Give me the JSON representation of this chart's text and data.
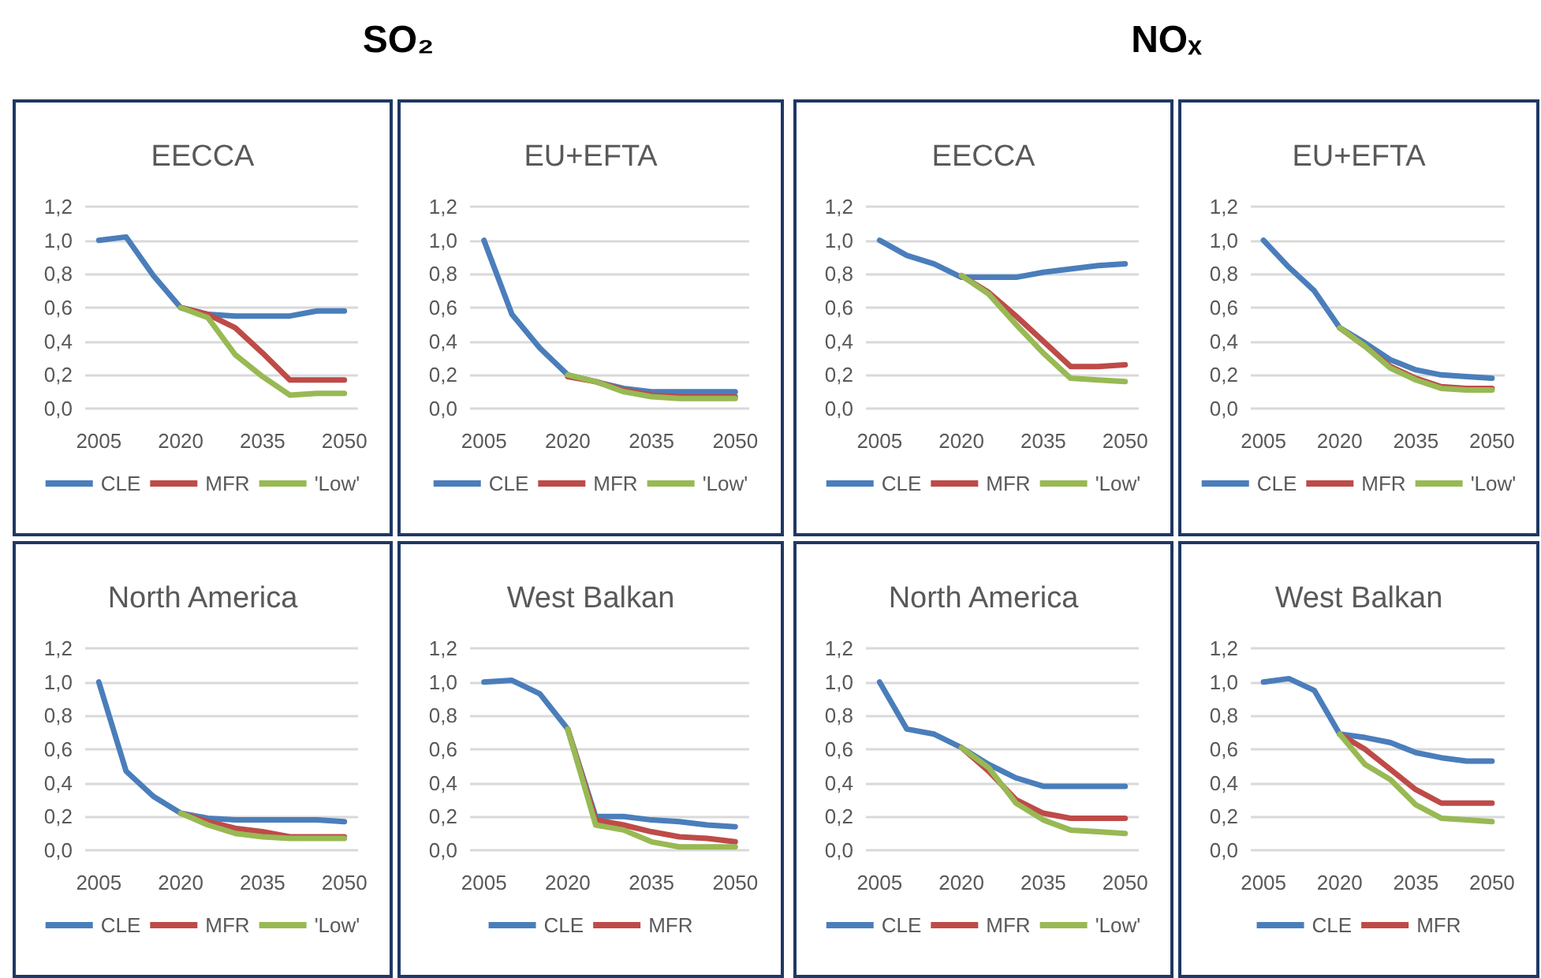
{
  "chart_data": [
    {
      "type": "line",
      "title": "EECCA",
      "annotations": [
        "SO₂"
      ],
      "categories": [
        "2005",
        null,
        null,
        "2020",
        null,
        null,
        "2035",
        null,
        null,
        "2050"
      ],
      "ylim": [
        0,
        1.2
      ],
      "yticks": [
        {
          "value": 0,
          "label": "0,0"
        },
        {
          "value": 0.2,
          "label": "0,2"
        },
        {
          "value": 0.4,
          "label": "0,4"
        },
        {
          "value": 0.6,
          "label": "0,6"
        },
        {
          "value": 0.8,
          "label": "0,8"
        },
        {
          "value": 1.0,
          "label": "1,0"
        },
        {
          "value": 1.2,
          "label": "1,2"
        }
      ],
      "grid": "y",
      "legend": "bottom",
      "marker": "none",
      "line_style": "solid",
      "series": [
        {
          "name": "CLE",
          "color": "#4a7ebb",
          "values": [
            1.0,
            1.02,
            0.79,
            0.6,
            0.56,
            0.55,
            0.55,
            0.55,
            0.58,
            0.58
          ]
        },
        {
          "name": "MFR",
          "color": "#be4b48",
          "values": [
            null,
            null,
            null,
            0.6,
            0.56,
            0.48,
            0.33,
            0.17,
            0.17,
            0.17
          ]
        },
        {
          "name": "'Low'",
          "color": "#98b954",
          "values": [
            null,
            null,
            null,
            0.6,
            0.54,
            0.32,
            0.19,
            0.08,
            0.09,
            0.09
          ]
        }
      ]
    },
    {
      "type": "line",
      "title": "EU+EFTA",
      "categories": [
        "2005",
        null,
        null,
        "2020",
        null,
        null,
        "2035",
        null,
        null,
        "2050"
      ],
      "ylim": [
        0,
        1.2
      ],
      "yticks": [
        {
          "value": 0,
          "label": "0,0"
        },
        {
          "value": 0.2,
          "label": "0,2"
        },
        {
          "value": 0.4,
          "label": "0,4"
        },
        {
          "value": 0.6,
          "label": "0,6"
        },
        {
          "value": 0.8,
          "label": "0,8"
        },
        {
          "value": 1.0,
          "label": "1,0"
        },
        {
          "value": 1.2,
          "label": "1,2"
        }
      ],
      "grid": "y",
      "legend": "bottom",
      "marker": "none",
      "line_style": "solid",
      "series": [
        {
          "name": "CLE",
          "color": "#4a7ebb",
          "values": [
            1.0,
            0.56,
            0.36,
            0.2,
            0.16,
            0.12,
            0.1,
            0.1,
            0.1,
            0.1
          ]
        },
        {
          "name": "MFR",
          "color": "#be4b48",
          "values": [
            null,
            null,
            null,
            0.19,
            0.16,
            0.11,
            0.08,
            0.07,
            0.07,
            0.07
          ]
        },
        {
          "name": "'Low'",
          "color": "#98b954",
          "values": [
            null,
            null,
            null,
            0.2,
            0.16,
            0.1,
            0.07,
            0.06,
            0.06,
            0.06
          ]
        }
      ]
    },
    {
      "type": "line",
      "title": "EECCA",
      "annotations": [
        "NOₓ"
      ],
      "categories": [
        "2005",
        null,
        null,
        "2020",
        null,
        null,
        "2035",
        null,
        null,
        "2050"
      ],
      "ylim": [
        0,
        1.2
      ],
      "yticks": [
        {
          "value": 0,
          "label": "0,0"
        },
        {
          "value": 0.2,
          "label": "0,2"
        },
        {
          "value": 0.4,
          "label": "0,4"
        },
        {
          "value": 0.6,
          "label": "0,6"
        },
        {
          "value": 0.8,
          "label": "0,8"
        },
        {
          "value": 1.0,
          "label": "1,0"
        },
        {
          "value": 1.2,
          "label": "1,2"
        }
      ],
      "grid": "y",
      "legend": "bottom",
      "marker": "none",
      "line_style": "solid",
      "series": [
        {
          "name": "CLE",
          "color": "#4a7ebb",
          "values": [
            1.0,
            0.91,
            0.86,
            0.78,
            0.78,
            0.78,
            0.81,
            0.83,
            0.85,
            0.86
          ]
        },
        {
          "name": "MFR",
          "color": "#be4b48",
          "values": [
            null,
            null,
            null,
            0.79,
            0.69,
            0.55,
            0.4,
            0.25,
            0.25,
            0.26
          ]
        },
        {
          "name": "'Low'",
          "color": "#98b954",
          "values": [
            null,
            null,
            null,
            0.79,
            0.68,
            0.5,
            0.33,
            0.18,
            0.17,
            0.16
          ]
        }
      ]
    },
    {
      "type": "line",
      "title": "EU+EFTA",
      "categories": [
        "2005",
        null,
        null,
        "2020",
        null,
        null,
        "2035",
        null,
        null,
        "2050"
      ],
      "ylim": [
        0,
        1.2
      ],
      "yticks": [
        {
          "value": 0,
          "label": "0,0"
        },
        {
          "value": 0.2,
          "label": "0,2"
        },
        {
          "value": 0.4,
          "label": "0,4"
        },
        {
          "value": 0.6,
          "label": "0,6"
        },
        {
          "value": 0.8,
          "label": "0,8"
        },
        {
          "value": 1.0,
          "label": "1,0"
        },
        {
          "value": 1.2,
          "label": "1,2"
        }
      ],
      "grid": "y",
      "legend": "bottom",
      "marker": "none",
      "line_style": "solid",
      "series": [
        {
          "name": "CLE",
          "color": "#4a7ebb",
          "values": [
            1.0,
            0.84,
            0.7,
            0.48,
            0.39,
            0.29,
            0.23,
            0.2,
            0.19,
            0.18
          ]
        },
        {
          "name": "MFR",
          "color": "#be4b48",
          "values": [
            null,
            null,
            null,
            0.48,
            0.37,
            0.25,
            0.18,
            0.13,
            0.12,
            0.12
          ]
        },
        {
          "name": "'Low'",
          "color": "#98b954",
          "values": [
            null,
            null,
            null,
            0.48,
            0.37,
            0.24,
            0.17,
            0.12,
            0.11,
            0.11
          ]
        }
      ]
    },
    {
      "type": "line",
      "title": "North America",
      "categories": [
        "2005",
        null,
        null,
        "2020",
        null,
        null,
        "2035",
        null,
        null,
        "2050"
      ],
      "ylim": [
        0,
        1.2
      ],
      "yticks": [
        {
          "value": 0,
          "label": "0,0"
        },
        {
          "value": 0.2,
          "label": "0,2"
        },
        {
          "value": 0.4,
          "label": "0,4"
        },
        {
          "value": 0.6,
          "label": "0,6"
        },
        {
          "value": 0.8,
          "label": "0,8"
        },
        {
          "value": 1.0,
          "label": "1,0"
        },
        {
          "value": 1.2,
          "label": "1,2"
        }
      ],
      "grid": "y",
      "legend": "bottom",
      "marker": "none",
      "line_style": "solid",
      "series": [
        {
          "name": "CLE",
          "color": "#4a7ebb",
          "values": [
            1.0,
            0.47,
            0.32,
            0.22,
            0.19,
            0.18,
            0.18,
            0.18,
            0.18,
            0.17
          ]
        },
        {
          "name": "MFR",
          "color": "#be4b48",
          "values": [
            null,
            null,
            null,
            0.22,
            0.17,
            0.13,
            0.11,
            0.08,
            0.08,
            0.08
          ]
        },
        {
          "name": "'Low'",
          "color": "#98b954",
          "values": [
            null,
            null,
            null,
            0.22,
            0.15,
            0.1,
            0.08,
            0.07,
            0.07,
            0.07
          ]
        }
      ]
    },
    {
      "type": "line",
      "title": "West Balkan",
      "categories": [
        "2005",
        null,
        null,
        "2020",
        null,
        null,
        "2035",
        null,
        null,
        "2050"
      ],
      "ylim": [
        0,
        1.2
      ],
      "yticks": [
        {
          "value": 0,
          "label": "0,0"
        },
        {
          "value": 0.2,
          "label": "0,2"
        },
        {
          "value": 0.4,
          "label": "0,4"
        },
        {
          "value": 0.6,
          "label": "0,6"
        },
        {
          "value": 0.8,
          "label": "0,8"
        },
        {
          "value": 1.0,
          "label": "1,0"
        },
        {
          "value": 1.2,
          "label": "1,2"
        }
      ],
      "grid": "y",
      "legend": "bottom",
      "marker": "none",
      "line_style": "solid",
      "series": [
        {
          "name": "CLE",
          "color": "#4a7ebb",
          "values": [
            1.0,
            1.01,
            0.93,
            0.72,
            0.2,
            0.2,
            0.18,
            0.17,
            0.15,
            0.14
          ]
        },
        {
          "name": "MFR",
          "color": "#be4b48",
          "values": [
            null,
            null,
            null,
            0.72,
            0.18,
            0.15,
            0.11,
            0.08,
            0.07,
            0.05
          ]
        },
        {
          "color": "#98b954",
          "values": [
            null,
            null,
            null,
            0.72,
            0.15,
            0.12,
            0.05,
            0.02,
            0.02,
            0.02
          ]
        }
      ]
    },
    {
      "type": "line",
      "title": "North America",
      "categories": [
        "2005",
        null,
        null,
        "2020",
        null,
        null,
        "2035",
        null,
        null,
        "2050"
      ],
      "ylim": [
        0,
        1.2
      ],
      "yticks": [
        {
          "value": 0,
          "label": "0,0"
        },
        {
          "value": 0.2,
          "label": "0,2"
        },
        {
          "value": 0.4,
          "label": "0,4"
        },
        {
          "value": 0.6,
          "label": "0,6"
        },
        {
          "value": 0.8,
          "label": "0,8"
        },
        {
          "value": 1.0,
          "label": "1,0"
        },
        {
          "value": 1.2,
          "label": "1,2"
        }
      ],
      "grid": "y",
      "legend": "bottom",
      "marker": "none",
      "line_style": "solid",
      "series": [
        {
          "name": "CLE",
          "color": "#4a7ebb",
          "values": [
            1.0,
            0.72,
            0.69,
            0.61,
            0.51,
            0.43,
            0.38,
            0.38,
            0.38,
            0.38
          ]
        },
        {
          "name": "MFR",
          "color": "#be4b48",
          "values": [
            null,
            null,
            null,
            0.61,
            0.47,
            0.3,
            0.22,
            0.19,
            0.19,
            0.19
          ]
        },
        {
          "name": "'Low'",
          "color": "#98b954",
          "values": [
            null,
            null,
            null,
            0.61,
            0.49,
            0.28,
            0.18,
            0.12,
            0.11,
            0.1
          ]
        }
      ]
    },
    {
      "type": "line",
      "title": "West Balkan",
      "categories": [
        "2005",
        null,
        null,
        "2020",
        null,
        null,
        "2035",
        null,
        null,
        "2050"
      ],
      "ylim": [
        0,
        1.2
      ],
      "yticks": [
        {
          "value": 0,
          "label": "0,0"
        },
        {
          "value": 0.2,
          "label": "0,2"
        },
        {
          "value": 0.4,
          "label": "0,4"
        },
        {
          "value": 0.6,
          "label": "0,6"
        },
        {
          "value": 0.8,
          "label": "0,8"
        },
        {
          "value": 1.0,
          "label": "1,0"
        },
        {
          "value": 1.2,
          "label": "1,2"
        }
      ],
      "grid": "y",
      "legend": "bottom",
      "marker": "none",
      "line_style": "solid",
      "series": [
        {
          "name": "CLE",
          "color": "#4a7ebb",
          "values": [
            1.0,
            1.02,
            0.95,
            0.69,
            0.67,
            0.64,
            0.58,
            0.55,
            0.53,
            0.53
          ]
        },
        {
          "name": "MFR",
          "color": "#be4b48",
          "values": [
            null,
            null,
            null,
            0.69,
            0.6,
            0.48,
            0.36,
            0.28,
            0.28,
            0.28
          ]
        },
        {
          "color": "#98b954",
          "values": [
            null,
            null,
            null,
            0.69,
            0.51,
            0.42,
            0.27,
            0.19,
            0.18,
            0.17
          ]
        }
      ]
    }
  ]
}
